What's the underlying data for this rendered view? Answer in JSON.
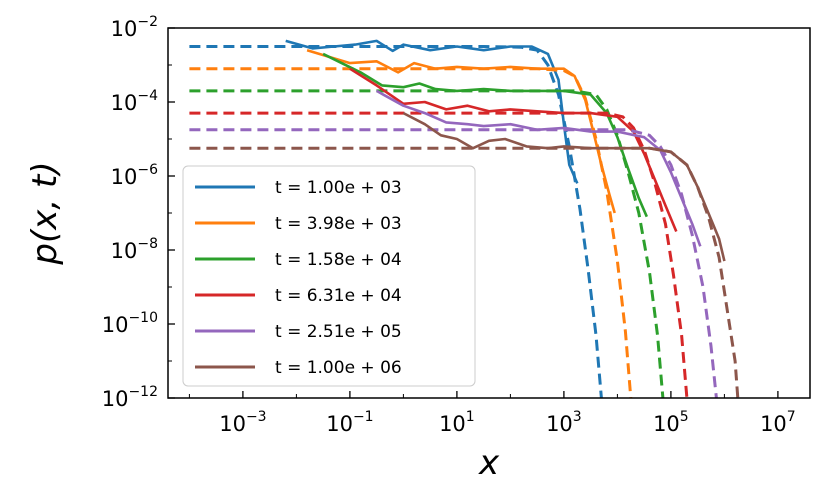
{
  "chart_data": {
    "type": "line",
    "xlabel": "x",
    "ylabel": "p(x, t)",
    "xscale": "log",
    "yscale": "log",
    "xlim_exp": [
      -4.4,
      7.6
    ],
    "ylim_exp": [
      -12,
      -2
    ],
    "x_ticks": [
      "10^-3",
      "10^-1",
      "10^1",
      "10^3",
      "10^5",
      "10^7"
    ],
    "y_ticks": [
      "10^-2",
      "10^-4",
      "10^-6",
      "10^-8",
      "10^-10",
      "10^-12"
    ],
    "legend_position": "lower-left",
    "grid": false,
    "series": [
      {
        "name": "t = 1.00e + 03",
        "color": "#1f77b4",
        "simulation": [
          [
            -2.2,
            -2.35
          ],
          [
            -1.7,
            -2.55
          ],
          [
            -1.3,
            -2.5
          ],
          [
            -0.9,
            -2.45
          ],
          [
            -0.5,
            -2.35
          ],
          [
            -0.2,
            -2.62
          ],
          [
            0.0,
            -2.45
          ],
          [
            0.5,
            -2.6
          ],
          [
            1.0,
            -2.5
          ],
          [
            1.5,
            -2.6
          ],
          [
            2.0,
            -2.5
          ],
          [
            2.4,
            -2.5
          ],
          [
            2.7,
            -2.7
          ],
          [
            2.9,
            -3.4
          ],
          [
            3.0,
            -4.6
          ],
          [
            3.1,
            -5.7
          ],
          [
            3.25,
            -6.2
          ]
        ],
        "fit": [
          [
            -4.0,
            -2.5
          ],
          [
            1.5,
            -2.5
          ],
          [
            2.2,
            -2.52
          ],
          [
            2.5,
            -2.6
          ],
          [
            2.7,
            -3.0
          ],
          [
            2.9,
            -3.8
          ],
          [
            3.1,
            -5.2
          ],
          [
            3.3,
            -6.9
          ],
          [
            3.45,
            -8.5
          ],
          [
            3.6,
            -10.3
          ],
          [
            3.7,
            -12.0
          ]
        ]
      },
      {
        "name": "t = 3.98e + 03",
        "color": "#ff7f0e",
        "simulation": [
          [
            -1.8,
            -2.6
          ],
          [
            -1.0,
            -2.95
          ],
          [
            -0.5,
            -2.9
          ],
          [
            -0.1,
            -3.2
          ],
          [
            0.2,
            -2.95
          ],
          [
            0.6,
            -3.1
          ],
          [
            1.0,
            -3.05
          ],
          [
            1.5,
            -3.1
          ],
          [
            2.0,
            -3.05
          ],
          [
            2.5,
            -3.1
          ],
          [
            3.0,
            -3.1
          ],
          [
            3.2,
            -3.3
          ],
          [
            3.4,
            -3.95
          ],
          [
            3.55,
            -4.8
          ],
          [
            3.7,
            -5.7
          ],
          [
            3.85,
            -6.5
          ],
          [
            3.95,
            -7.0
          ]
        ],
        "fit": [
          [
            -4.0,
            -3.1
          ],
          [
            2.5,
            -3.1
          ],
          [
            3.0,
            -3.15
          ],
          [
            3.2,
            -3.3
          ],
          [
            3.4,
            -3.9
          ],
          [
            3.6,
            -5.0
          ],
          [
            3.8,
            -6.4
          ],
          [
            4.0,
            -8.3
          ],
          [
            4.15,
            -10.2
          ],
          [
            4.25,
            -12.0
          ]
        ]
      },
      {
        "name": "t = 1.58e + 04",
        "color": "#2ca02c",
        "simulation": [
          [
            -1.5,
            -2.7
          ],
          [
            -0.8,
            -3.2
          ],
          [
            -0.4,
            -3.55
          ],
          [
            0.0,
            -3.6
          ],
          [
            0.3,
            -3.5
          ],
          [
            0.6,
            -3.65
          ],
          [
            1.0,
            -3.7
          ],
          [
            1.5,
            -3.65
          ],
          [
            2.0,
            -3.7
          ],
          [
            2.5,
            -3.7
          ],
          [
            3.0,
            -3.7
          ],
          [
            3.5,
            -3.8
          ],
          [
            3.8,
            -4.3
          ],
          [
            4.0,
            -4.95
          ],
          [
            4.2,
            -5.8
          ],
          [
            4.4,
            -6.6
          ],
          [
            4.55,
            -7.1
          ]
        ],
        "fit": [
          [
            -4.0,
            -3.7
          ],
          [
            3.2,
            -3.7
          ],
          [
            3.6,
            -3.8
          ],
          [
            3.8,
            -4.2
          ],
          [
            4.0,
            -4.9
          ],
          [
            4.2,
            -5.9
          ],
          [
            4.4,
            -7.0
          ],
          [
            4.6,
            -8.6
          ],
          [
            4.75,
            -10.3
          ],
          [
            4.85,
            -12.0
          ]
        ]
      },
      {
        "name": "t = 6.31e + 04",
        "color": "#d62728",
        "simulation": [
          [
            -1.0,
            -3.1
          ],
          [
            -0.5,
            -3.55
          ],
          [
            0.0,
            -4.05
          ],
          [
            0.4,
            -4.0
          ],
          [
            0.8,
            -4.2
          ],
          [
            1.2,
            -4.1
          ],
          [
            1.6,
            -4.25
          ],
          [
            2.0,
            -4.2
          ],
          [
            2.5,
            -4.25
          ],
          [
            3.0,
            -4.3
          ],
          [
            3.5,
            -4.3
          ],
          [
            4.0,
            -4.4
          ],
          [
            4.3,
            -4.8
          ],
          [
            4.5,
            -5.4
          ],
          [
            4.7,
            -6.1
          ],
          [
            4.9,
            -6.8
          ],
          [
            5.1,
            -7.5
          ]
        ],
        "fit": [
          [
            -4.0,
            -4.3
          ],
          [
            3.8,
            -4.3
          ],
          [
            4.1,
            -4.4
          ],
          [
            4.3,
            -4.7
          ],
          [
            4.5,
            -5.3
          ],
          [
            4.7,
            -6.2
          ],
          [
            4.9,
            -7.3
          ],
          [
            5.05,
            -8.7
          ],
          [
            5.2,
            -10.3
          ],
          [
            5.3,
            -12.0
          ]
        ]
      },
      {
        "name": "t = 2.51e + 05",
        "color": "#9467bd",
        "simulation": [
          [
            -0.5,
            -3.7
          ],
          [
            0.0,
            -4.1
          ],
          [
            0.4,
            -4.3
          ],
          [
            0.8,
            -4.55
          ],
          [
            1.2,
            -4.6
          ],
          [
            1.5,
            -4.65
          ],
          [
            2.0,
            -4.6
          ],
          [
            2.5,
            -4.75
          ],
          [
            3.0,
            -4.7
          ],
          [
            3.5,
            -4.8
          ],
          [
            4.0,
            -4.8
          ],
          [
            4.5,
            -4.95
          ],
          [
            4.8,
            -5.3
          ],
          [
            5.0,
            -5.9
          ],
          [
            5.2,
            -6.6
          ],
          [
            5.4,
            -7.3
          ],
          [
            5.55,
            -7.9
          ]
        ],
        "fit": [
          [
            -4.0,
            -4.75
          ],
          [
            4.2,
            -4.75
          ],
          [
            4.6,
            -4.9
          ],
          [
            4.8,
            -5.2
          ],
          [
            5.0,
            -5.7
          ],
          [
            5.2,
            -6.5
          ],
          [
            5.4,
            -7.6
          ],
          [
            5.6,
            -9.0
          ],
          [
            5.75,
            -10.6
          ],
          [
            5.85,
            -12.0
          ]
        ]
      },
      {
        "name": "t = 1.00e + 06",
        "color": "#8c564b",
        "simulation": [
          [
            0.0,
            -4.3
          ],
          [
            0.4,
            -4.6
          ],
          [
            0.7,
            -4.9
          ],
          [
            1.0,
            -5.0
          ],
          [
            1.3,
            -5.25
          ],
          [
            1.6,
            -5.05
          ],
          [
            1.9,
            -5.0
          ],
          [
            2.3,
            -5.2
          ],
          [
            2.7,
            -5.25
          ],
          [
            3.0,
            -5.2
          ],
          [
            3.5,
            -5.25
          ],
          [
            4.0,
            -5.25
          ],
          [
            4.6,
            -5.25
          ],
          [
            5.0,
            -5.35
          ],
          [
            5.3,
            -5.7
          ],
          [
            5.5,
            -6.3
          ],
          [
            5.7,
            -7.0
          ],
          [
            5.9,
            -7.7
          ],
          [
            6.0,
            -8.3
          ]
        ],
        "fit": [
          [
            -4.0,
            -5.25
          ],
          [
            4.6,
            -5.25
          ],
          [
            5.0,
            -5.35
          ],
          [
            5.3,
            -5.7
          ],
          [
            5.5,
            -6.3
          ],
          [
            5.7,
            -7.1
          ],
          [
            5.9,
            -8.2
          ],
          [
            6.05,
            -9.6
          ],
          [
            6.2,
            -11.0
          ],
          [
            6.25,
            -12.0
          ]
        ]
      }
    ]
  }
}
